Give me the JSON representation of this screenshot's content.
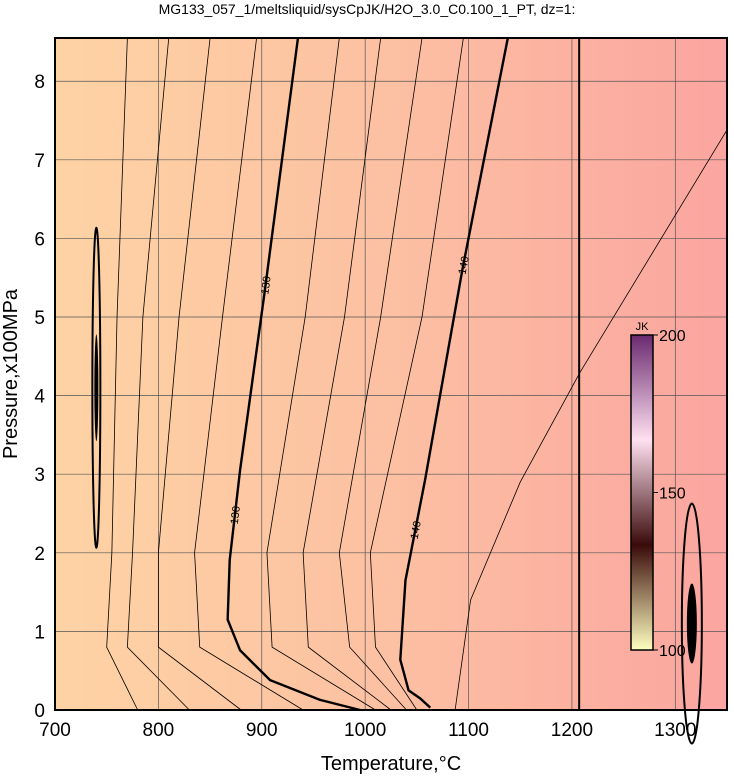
{
  "chart_data": {
    "type": "contour",
    "title": "MG133_057_1/meltsliquid/sysCpJK/H2O_3.0_C0.100_1_PT, dz=1:",
    "xlabel": "Temperature,°C",
    "ylabel": "Pressure,x100MPa",
    "xlim": [
      700,
      1350
    ],
    "ylim": [
      0,
      8.55
    ],
    "xticks": [
      700,
      800,
      900,
      1000,
      1100,
      1200,
      1300
    ],
    "yticks": [
      0,
      1,
      2,
      3,
      4,
      5,
      6,
      7,
      8
    ],
    "grid": true,
    "fill_colors": [
      "#fed3a4",
      "#fcc0a2",
      "#fba5a0"
    ],
    "boundary_x": 1207,
    "contours": [
      {
        "level": 130,
        "x": [
          935,
          903,
          879,
          869,
          867,
          879,
          908,
          956,
          995
        ],
        "y": [
          8.55,
          5.34,
          3.05,
          1.91,
          1.15,
          0.76,
          0.38,
          0.13,
          0
        ]
      },
      {
        "level": 140,
        "x": [
          1138,
          1094,
          1058,
          1039,
          1034,
          1042,
          1053,
          1063
        ],
        "y": [
          8.55,
          5.6,
          2.93,
          1.65,
          0.64,
          0.25,
          0.15,
          0.03
        ]
      },
      {
        "x": [
          770,
          760,
          755,
          750,
          780
        ],
        "y": [
          8.55,
          5,
          2,
          0.8,
          0
        ]
      },
      {
        "x": [
          810,
          785,
          775,
          770,
          830
        ],
        "y": [
          8.55,
          5,
          2,
          0.8,
          0
        ]
      },
      {
        "x": [
          850,
          820,
          800,
          800,
          880
        ],
        "y": [
          8.55,
          5,
          2,
          0.8,
          0
        ]
      },
      {
        "x": [
          895,
          862,
          835,
          840,
          940
        ],
        "y": [
          8.55,
          5,
          2,
          0.8,
          0
        ]
      },
      {
        "x": [
          975,
          942,
          905,
          910,
          1010
        ],
        "y": [
          8.55,
          5,
          2,
          0.8,
          0
        ]
      },
      {
        "x": [
          1015,
          980,
          940,
          945,
          1025
        ],
        "y": [
          8.55,
          5,
          2,
          0.8,
          0
        ]
      },
      {
        "x": [
          1055,
          1015,
          975,
          985,
          1040
        ],
        "y": [
          8.55,
          5,
          2,
          0.8,
          0
        ]
      },
      {
        "x": [
          1095,
          1055,
          1005,
          1010,
          1050
        ],
        "y": [
          8.55,
          5,
          2,
          0.8,
          0
        ]
      },
      {
        "x": [
          1350,
          1208,
          1150,
          1102,
          1087
        ],
        "y": [
          7.38,
          4.3,
          2.9,
          1.4,
          0
        ]
      }
    ],
    "colorbar": {
      "title": "JK",
      "lim": [
        100,
        200
      ],
      "ticks": [
        100,
        150,
        200
      ],
      "colors": [
        "#ffffc0",
        "#3a0a0a",
        "#ffe0f0",
        "#6a2a70"
      ]
    }
  }
}
